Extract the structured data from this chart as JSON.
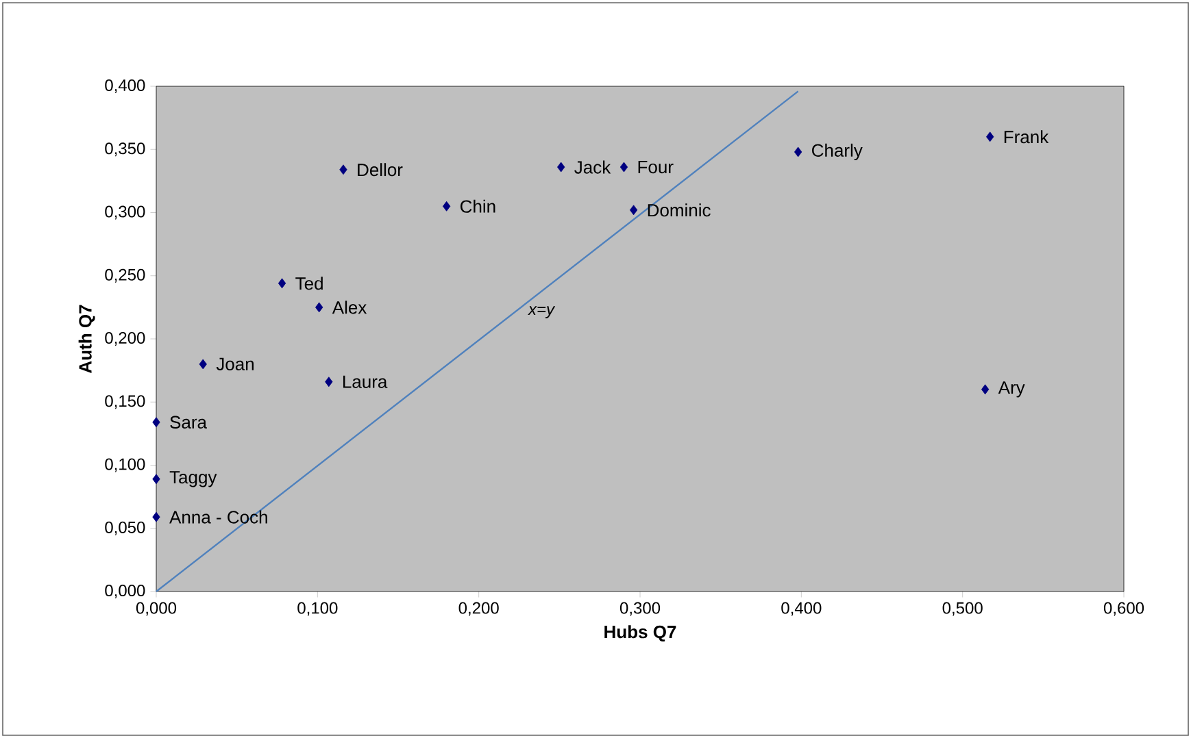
{
  "chart_data": {
    "type": "scatter",
    "xlabel": "Hubs Q7",
    "ylabel": "Auth Q7",
    "xlim": [
      0,
      0.6
    ],
    "ylim": [
      0,
      0.4
    ],
    "xticks": [
      {
        "value": 0,
        "label": "0,000"
      },
      {
        "value": 0.1,
        "label": "0,100"
      },
      {
        "value": 0.2,
        "label": "0,200"
      },
      {
        "value": 0.3,
        "label": "0,300"
      },
      {
        "value": 0.4,
        "label": "0,400"
      },
      {
        "value": 0.5,
        "label": "0,500"
      },
      {
        "value": 0.6,
        "label": "0,600"
      }
    ],
    "yticks": [
      {
        "value": 0,
        "label": "0,000"
      },
      {
        "value": 0.05,
        "label": "0,050"
      },
      {
        "value": 0.1,
        "label": "0,100"
      },
      {
        "value": 0.15,
        "label": "0,150"
      },
      {
        "value": 0.2,
        "label": "0,200"
      },
      {
        "value": 0.25,
        "label": "0,250"
      },
      {
        "value": 0.3,
        "label": "0,300"
      },
      {
        "value": 0.35,
        "label": "0,350"
      },
      {
        "value": 0.4,
        "label": "0,400"
      }
    ],
    "grid": false,
    "legend": false,
    "series": [
      {
        "color": "#000080",
        "marker": "diamond",
        "x": [
          0.116,
          0.251,
          0.29,
          0.18,
          0.296,
          0.398,
          0.517,
          0.078,
          0.101,
          0.029,
          0.107,
          0.514,
          0,
          0,
          0
        ],
        "values": [
          0.334,
          0.336,
          0.336,
          0.305,
          0.302,
          0.348,
          0.36,
          0.244,
          0.225,
          0.18,
          0.166,
          0.16,
          0.134,
          0.089,
          0.059
        ]
      },
      {
        "type": "line",
        "name": "x=y",
        "color": "#4f81bd",
        "marker": "none",
        "line_style": "solid",
        "x": [
          0,
          0.398
        ],
        "values": [
          0,
          0.396
        ]
      }
    ],
    "annotations": [
      {
        "text": "Dellor",
        "x": 0.116,
        "y": 0.334
      },
      {
        "text": "Jack",
        "x": 0.251,
        "y": 0.336
      },
      {
        "text": "Four",
        "x": 0.29,
        "y": 0.336
      },
      {
        "text": "Chin",
        "x": 0.18,
        "y": 0.305
      },
      {
        "text": "Dominic",
        "x": 0.296,
        "y": 0.302
      },
      {
        "text": "Charly",
        "x": 0.398,
        "y": 0.348
      },
      {
        "text": "Frank",
        "x": 0.517,
        "y": 0.36
      },
      {
        "text": "Ted",
        "x": 0.078,
        "y": 0.244
      },
      {
        "text": "Alex",
        "x": 0.101,
        "y": 0.225
      },
      {
        "text": "Joan",
        "x": 0.029,
        "y": 0.18
      },
      {
        "text": "Laura",
        "x": 0.107,
        "y": 0.166
      },
      {
        "text": "Ary",
        "x": 0.514,
        "y": 0.16
      },
      {
        "text": "Sara",
        "x": 0,
        "y": 0.134
      },
      {
        "text": "Taggy",
        "x": 0,
        "y": 0.089
      },
      {
        "text": "Anna - Coch",
        "x": 0,
        "y": 0.059
      }
    ]
  }
}
